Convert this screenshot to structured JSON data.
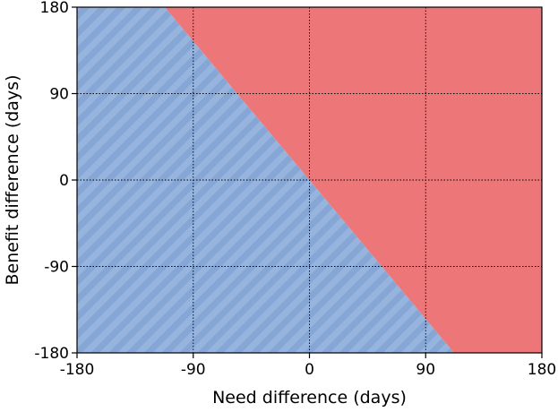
{
  "chart_data": {
    "type": "area",
    "title": "",
    "xlabel": "Need difference (days)",
    "ylabel": "Benefit difference (days)",
    "xlim": [
      -180,
      180
    ],
    "ylim": [
      -180,
      180
    ],
    "x_ticks": [
      -180,
      -90,
      0,
      90,
      180
    ],
    "y_ticks": [
      -180,
      -90,
      0,
      90,
      180
    ],
    "x_tick_labels": [
      "-180",
      "-90",
      "0",
      "90",
      "180"
    ],
    "y_tick_labels": [
      "-180",
      "-90",
      "0",
      "90",
      "180"
    ],
    "grid": true,
    "grid_style": "dotted",
    "regions": [
      {
        "fill": "#96b4de",
        "hatch_color": "#86a7d6",
        "hatched": true,
        "polygon": [
          [
            -180,
            -180
          ],
          [
            112,
            -180
          ],
          [
            -112,
            180
          ],
          [
            -180,
            180
          ]
        ]
      },
      {
        "fill": "#ed7678",
        "hatched": false,
        "polygon": [
          [
            112,
            -180
          ],
          [
            180,
            -180
          ],
          [
            180,
            180
          ],
          [
            -112,
            180
          ]
        ]
      }
    ],
    "boundary": {
      "slope": -1.6,
      "intercept": 0
    }
  }
}
